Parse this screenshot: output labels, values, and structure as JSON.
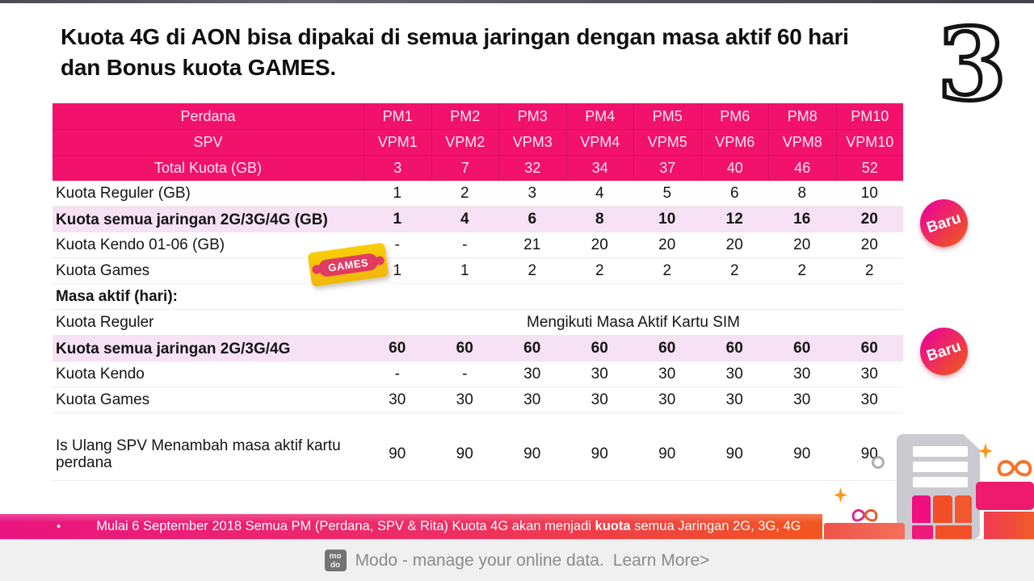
{
  "page": {
    "title_line1": "Kuota 4G di AON bisa dipakai di semua jaringan dengan masa aktif 60 hari",
    "title_line2": "dan Bonus kuota GAMES."
  },
  "brand": {
    "logo_glyph": "3"
  },
  "badges": {
    "new_label": "Baru"
  },
  "games_sticker": {
    "label": "GAMES"
  },
  "table": {
    "columns": [
      "PM1",
      "PM2",
      "PM3",
      "PM4",
      "PM5",
      "PM6",
      "PM8",
      "PM10"
    ],
    "header_rows": [
      {
        "label": "Perdana",
        "values": [
          "PM1",
          "PM2",
          "PM3",
          "PM4",
          "PM5",
          "PM6",
          "PM8",
          "PM10"
        ]
      },
      {
        "label": "SPV",
        "values": [
          "VPM1",
          "VPM2",
          "VPM3",
          "VPM4",
          "VPM5",
          "VPM6",
          "VPM8",
          "VPM10"
        ]
      },
      {
        "label": "Total Kuota (GB)",
        "values": [
          "3",
          "7",
          "32",
          "34",
          "37",
          "40",
          "46",
          "52"
        ]
      }
    ],
    "body_rows": [
      {
        "label": "Kuota Reguler (GB)",
        "values": [
          "1",
          "2",
          "3",
          "4",
          "5",
          "6",
          "8",
          "10"
        ]
      },
      {
        "label": "Kuota semua jaringan 2G/3G/4G (GB)",
        "values": [
          "1",
          "4",
          "6",
          "8",
          "10",
          "12",
          "16",
          "20"
        ],
        "highlight": true
      },
      {
        "label": "Kuota Kendo 01-06 (GB)",
        "values": [
          "-",
          "-",
          "21",
          "20",
          "20",
          "20",
          "20",
          "20"
        ]
      },
      {
        "label": "Kuota Games",
        "values": [
          "1",
          "1",
          "2",
          "2",
          "2",
          "2",
          "2",
          "2"
        ]
      },
      {
        "label": "Masa aktif (hari):",
        "values": [],
        "bold_label": true
      },
      {
        "label": "Kuota Reguler",
        "span_text": "Mengikuti Masa Aktif Kartu SIM"
      },
      {
        "label": "Kuota semua jaringan 2G/3G/4G",
        "values": [
          "60",
          "60",
          "60",
          "60",
          "60",
          "60",
          "60",
          "60"
        ],
        "highlight": true
      },
      {
        "label": "Kuota Kendo",
        "values": [
          "-",
          "-",
          "30",
          "30",
          "30",
          "30",
          "30",
          "30"
        ]
      },
      {
        "label": "Kuota Games",
        "values": [
          "30",
          "30",
          "30",
          "30",
          "30",
          "30",
          "30",
          "30"
        ]
      },
      {
        "label": "Is Ulang SPV Menambah masa aktif kartu perdana",
        "values": [
          "90",
          "90",
          "90",
          "90",
          "90",
          "90",
          "90",
          "90"
        ],
        "tall": true,
        "spacer_before": true
      }
    ]
  },
  "footnote": {
    "bullet": "•",
    "text_before": "Mulai 6 September 2018 Semua PM (Perdana, SPV & Rita) Kuota 4G akan menjadi ",
    "bold_word": "kuota",
    "text_after": " semua Jaringan 2G, 3G, 4G"
  },
  "footer": {
    "logo_top": "mo",
    "logo_bottom": "do",
    "text": "Modo - manage your online data.",
    "link": "Learn More>"
  },
  "colors": {
    "header_pink": "#f2116b",
    "highlight_pink": "#f6e2f4",
    "bar_gradient_left": "#e9147f",
    "bar_gradient_right": "#f2571f",
    "badge_gradient": [
      "#ea0b8c",
      "#f05423"
    ],
    "sticker_yellow": "#f6c60d",
    "sticker_band": "#e23a60",
    "sim_gray": "#cbcad1"
  }
}
